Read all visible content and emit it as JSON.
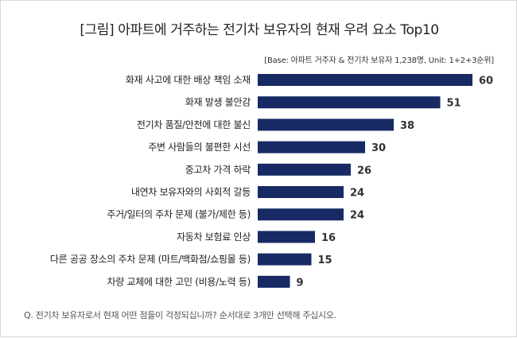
{
  "title": "[그림] 아파트에 거주하는 전기차 보유자의 현재 우려 요소 Top10",
  "base_note": "[Base: 아파트 거주자 & 전기차 보유자 1,238명, Unit: 1+2+3순위]",
  "footnote": "Q. 전기차 보유자로서 현재 어떤 점들이 걱정되십니까? 순서대로 3개만 선택해 주십시오.",
  "colors": {
    "bar": "#172a64",
    "text": "#222222",
    "value": "#333333",
    "border": "#d7d7d7"
  },
  "chart_data": {
    "type": "bar",
    "orientation": "horizontal",
    "title": "[그림] 아파트에 거주하는 전기차 보유자의 현재 우려 요소 Top10",
    "categories": [
      "화재 사고에 대한 배상 책임 소재",
      "화재 발생 불안감",
      "전기차 품질/안전에 대한 불신",
      "주변 사람들의 불편한 시선",
      "중고차 가격 하락",
      "내연차 보유자와의 사회적 갈등",
      "주거/일터의 주차 문제 (불가/제한 등)",
      "자동차 보험료 인상",
      "다른 공공 장소의 주차 문제 (마트/백화점/쇼핑몰 등)",
      "차량 교체에 대한 고민 (비용/노력 등)"
    ],
    "values": [
      60,
      51,
      38,
      30,
      26,
      24,
      24,
      16,
      15,
      9
    ],
    "xlim": [
      0,
      60
    ],
    "grid": false,
    "legend": "none"
  }
}
